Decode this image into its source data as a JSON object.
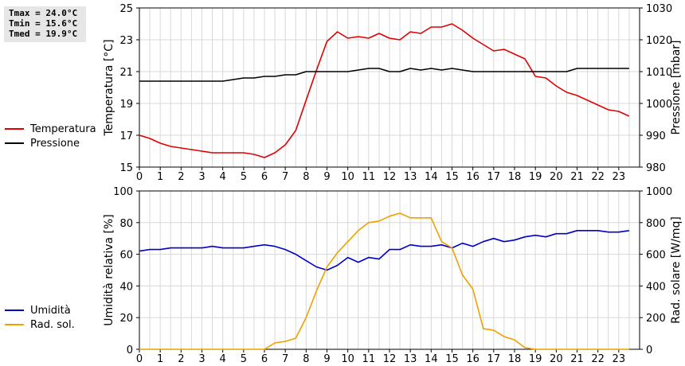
{
  "stats": {
    "tmax": "Tmax = 24.0°C",
    "tmin": "Tmin = 15.6°C",
    "tmed": "Tmed = 19.9°C"
  },
  "legend_top": [
    {
      "label": "Temperatura",
      "color": "#e00000"
    },
    {
      "label": "Pressione",
      "color": "#000000"
    }
  ],
  "legend_bottom": [
    {
      "label": "Umidità",
      "color": "#0000c8"
    },
    {
      "label": "Rad. sol.",
      "color": "#f0a000"
    }
  ],
  "chart_data": [
    {
      "type": "line",
      "ylabel": "Temperatura [°C]",
      "y2label": "Pressione [mbar]",
      "xlim": [
        0,
        24
      ],
      "ylim": [
        15,
        25
      ],
      "y2lim": [
        980,
        1030
      ],
      "xticks": [
        "0",
        "1",
        "2",
        "3",
        "4",
        "5",
        "6",
        "7",
        "8",
        "9",
        "10",
        "11",
        "12",
        "13",
        "14",
        "15",
        "16",
        "17",
        "18",
        "19",
        "20",
        "21",
        "22",
        "23"
      ],
      "yticks": [
        "15",
        "17",
        "19",
        "21",
        "23",
        "25"
      ],
      "y2ticks": [
        "980",
        "990",
        "1000",
        "1010",
        "1020",
        "1030"
      ],
      "grid": true,
      "series": [
        {
          "name": "Temperatura",
          "axis": "left",
          "color": "#e00000",
          "x": [
            0,
            0.5,
            1,
            1.5,
            2,
            2.5,
            3,
            3.5,
            4,
            4.5,
            5,
            5.5,
            6,
            6.5,
            7,
            7.5,
            8,
            8.5,
            9,
            9.5,
            10,
            10.5,
            11,
            11.5,
            12,
            12.5,
            13,
            13.5,
            14,
            14.5,
            15,
            15.5,
            16,
            16.5,
            17,
            17.5,
            18,
            18.5,
            19,
            19.5,
            20,
            20.5,
            21,
            21.5,
            22,
            22.5,
            23,
            23.5
          ],
          "y": [
            17.0,
            16.8,
            16.5,
            16.3,
            16.2,
            16.1,
            16.0,
            15.9,
            15.9,
            15.9,
            15.9,
            15.8,
            15.6,
            15.9,
            16.4,
            17.3,
            19.2,
            21.1,
            22.9,
            23.5,
            23.1,
            23.2,
            23.1,
            23.4,
            23.1,
            23.0,
            23.5,
            23.4,
            23.8,
            23.8,
            24.0,
            23.6,
            23.1,
            22.7,
            22.3,
            22.4,
            22.1,
            21.8,
            20.7,
            20.6,
            20.1,
            19.7,
            19.5,
            19.2,
            18.9,
            18.6,
            18.5,
            18.2
          ]
        },
        {
          "name": "Pressione",
          "axis": "right",
          "color": "#000000",
          "x": [
            0,
            1,
            2,
            3,
            4,
            4.5,
            5,
            5.5,
            6,
            6.5,
            7,
            7.5,
            8,
            8.5,
            9,
            9.5,
            10,
            10.5,
            11,
            11.5,
            12,
            12.5,
            13,
            13.5,
            14,
            14.5,
            15,
            15.5,
            16,
            16.5,
            17,
            17.5,
            18,
            18.5,
            19,
            19.5,
            20,
            20.5,
            21,
            21.5,
            22,
            22.5,
            23,
            23.5
          ],
          "y": [
            1007,
            1007,
            1007,
            1007,
            1007,
            1007.5,
            1008,
            1008,
            1008.5,
            1008.5,
            1009,
            1009,
            1010,
            1010,
            1010,
            1010,
            1010,
            1010.5,
            1011,
            1011,
            1010,
            1010,
            1011,
            1010.5,
            1011,
            1010.5,
            1011,
            1010.5,
            1010,
            1010,
            1010,
            1010,
            1010,
            1010,
            1010,
            1010,
            1010,
            1010,
            1011,
            1011,
            1011,
            1011,
            1011,
            1011
          ]
        }
      ]
    },
    {
      "type": "line",
      "ylabel": "Umidità relativa [%]",
      "y2label": "Rad. solare [W/mq]",
      "xlim": [
        0,
        24
      ],
      "ylim": [
        0,
        100
      ],
      "y2lim": [
        0,
        1000
      ],
      "xticks": [
        "0",
        "1",
        "2",
        "3",
        "4",
        "5",
        "6",
        "7",
        "8",
        "9",
        "10",
        "11",
        "12",
        "13",
        "14",
        "15",
        "16",
        "17",
        "18",
        "19",
        "20",
        "21",
        "22",
        "23"
      ],
      "yticks": [
        "0",
        "20",
        "40",
        "60",
        "80",
        "100"
      ],
      "y2ticks": [
        "0",
        "200",
        "400",
        "600",
        "800",
        "1000"
      ],
      "grid": true,
      "series": [
        {
          "name": "Umidità",
          "axis": "left",
          "color": "#0000c8",
          "x": [
            0,
            0.5,
            1,
            1.5,
            2,
            2.5,
            3,
            3.5,
            4,
            4.5,
            5,
            5.5,
            6,
            6.5,
            7,
            7.5,
            8,
            8.5,
            9,
            9.5,
            10,
            10.5,
            11,
            11.5,
            12,
            12.5,
            13,
            13.5,
            14,
            14.5,
            15,
            15.5,
            16,
            16.5,
            17,
            17.5,
            18,
            18.5,
            19,
            19.5,
            20,
            20.5,
            21,
            21.5,
            22,
            22.5,
            23,
            23.5
          ],
          "y": [
            62,
            63,
            63,
            64,
            64,
            64,
            64,
            65,
            64,
            64,
            64,
            65,
            66,
            65,
            63,
            60,
            56,
            52,
            50,
            53,
            58,
            55,
            58,
            57,
            63,
            63,
            66,
            65,
            65,
            66,
            64,
            67,
            65,
            68,
            70,
            68,
            69,
            71,
            72,
            71,
            73,
            73,
            75,
            75,
            75,
            74,
            74,
            75
          ]
        },
        {
          "name": "Rad. sol.",
          "axis": "right",
          "color": "#f0a000",
          "x": [
            0,
            1,
            2,
            3,
            4,
            5,
            6,
            6.5,
            7,
            7.5,
            8,
            8.5,
            9,
            9.5,
            10,
            10.5,
            11,
            11.5,
            12,
            12.5,
            13,
            13.5,
            14,
            14.5,
            15,
            15.5,
            16,
            16.5,
            17,
            17.5,
            18,
            18.5,
            19,
            19.5,
            20,
            21,
            22,
            23,
            23.5
          ],
          "y": [
            0,
            0,
            0,
            0,
            0,
            0,
            0,
            40,
            50,
            70,
            200,
            370,
            520,
            610,
            680,
            750,
            800,
            810,
            840,
            860,
            830,
            830,
            830,
            680,
            640,
            470,
            380,
            130,
            120,
            80,
            60,
            10,
            0,
            0,
            0,
            0,
            0,
            0,
            0
          ]
        }
      ]
    }
  ]
}
